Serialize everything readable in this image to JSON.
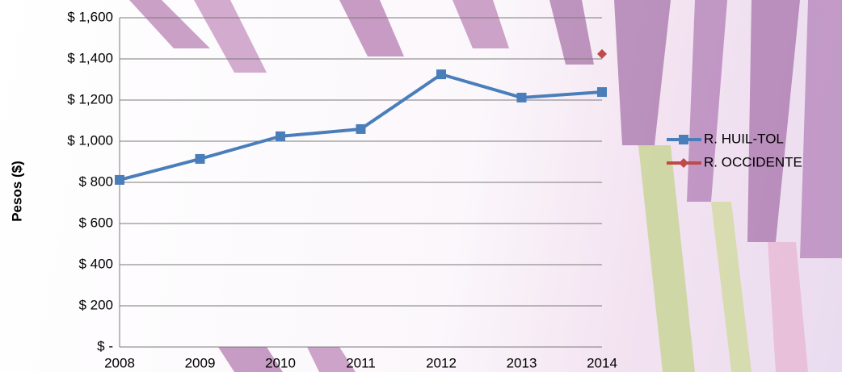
{
  "chart_data": {
    "type": "line",
    "categories": [
      "2008",
      "2009",
      "2010",
      "2011",
      "2012",
      "2013",
      "2014"
    ],
    "y_label": "Pesos ($)",
    "series": [
      {
        "name": "R. HUIL-TOL",
        "color": "#4a7ebb",
        "marker": "square",
        "values": [
          812,
          914,
          1024,
          1059,
          1325,
          1212,
          1239
        ]
      },
      {
        "name": "R. OCCIDENTE",
        "color": "#be4b48",
        "marker": "diamond",
        "values": [
          null,
          null,
          null,
          null,
          null,
          null,
          1424
        ]
      }
    ],
    "ylim": [
      0,
      1600
    ],
    "yticks": [
      {
        "value": 0,
        "label": "$ -"
      },
      {
        "value": 200,
        "label": "$ 200"
      },
      {
        "value": 400,
        "label": "$ 400"
      },
      {
        "value": 600,
        "label": "$ 600"
      },
      {
        "value": 800,
        "label": "$ 800"
      },
      {
        "value": 1000,
        "label": "$ 1,000"
      },
      {
        "value": 1200,
        "label": "$ 1,200"
      },
      {
        "value": 1400,
        "label": "$ 1,400"
      },
      {
        "value": 1600,
        "label": "$ 1,600"
      }
    ],
    "grid": true,
    "legend": "right"
  }
}
